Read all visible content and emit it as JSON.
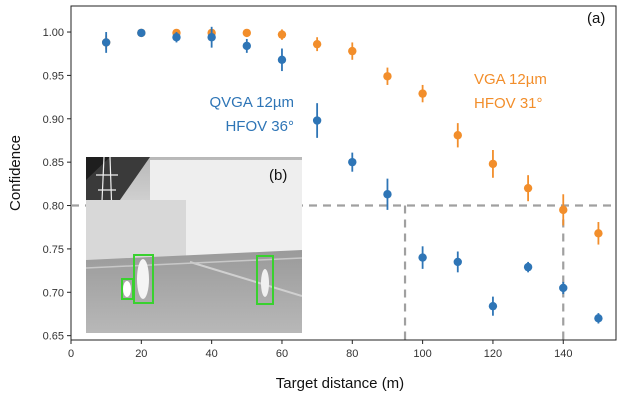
{
  "chart_data": {
    "type": "scatter",
    "xlabel": "Target distance (m)",
    "ylabel": "Confidence",
    "xlim": [
      0,
      155
    ],
    "ylim": [
      0.645,
      1.03
    ],
    "xticks": [
      0,
      20,
      40,
      60,
      80,
      100,
      120,
      140
    ],
    "xtick_labels": [
      "0",
      "20",
      "40",
      "60",
      "80",
      "100",
      "120",
      "140"
    ],
    "yticks": [
      0.65,
      0.7,
      0.75,
      0.8,
      0.85,
      0.9,
      0.95,
      1.0
    ],
    "ytick_labels": [
      "0.65",
      "0.70",
      "0.75",
      "0.80",
      "0.85",
      "0.90",
      "0.95",
      "1.00"
    ],
    "grid": false,
    "series": [
      {
        "name": "VGA 12µm HFOV 31°",
        "color": "#f28e2b",
        "x": [
          10,
          20,
          30,
          40,
          50,
          60,
          70,
          80,
          90,
          100,
          110,
          120,
          130,
          140,
          150
        ],
        "y": [
          0.988,
          0.999,
          0.999,
          0.999,
          0.999,
          0.997,
          0.986,
          0.978,
          0.949,
          0.929,
          0.881,
          0.848,
          0.82,
          0.795,
          0.768
        ],
        "err": [
          0.008,
          0.003,
          0.003,
          0.004,
          0.003,
          0.006,
          0.008,
          0.01,
          0.01,
          0.01,
          0.014,
          0.016,
          0.015,
          0.018,
          0.013
        ]
      },
      {
        "name": "QVGA 12µm HFOV 36°",
        "color": "#2e75b6",
        "x": [
          10,
          20,
          30,
          40,
          50,
          60,
          70,
          80,
          90,
          100,
          110,
          120,
          130,
          140,
          150
        ],
        "y": [
          0.988,
          0.999,
          0.994,
          0.994,
          0.984,
          0.968,
          0.898,
          0.85,
          0.813,
          0.74,
          0.735,
          0.684,
          0.729,
          0.705,
          0.67
        ],
        "err": [
          0.012,
          0.003,
          0.006,
          0.012,
          0.008,
          0.013,
          0.02,
          0.011,
          0.018,
          0.013,
          0.012,
          0.011,
          0.006,
          0.007,
          0.006
        ]
      }
    ],
    "threshold_line": 0.8,
    "annotations": {
      "qvga_line1": "QVGA 12µm",
      "qvga_line2": "HFOV 36°",
      "vga_line1": "VGA 12µm",
      "vga_line2": "HFOV 31°",
      "panel_a": "(a)",
      "panel_b": "(b)"
    },
    "inset": {
      "type": "thermal-image",
      "detection_boxes": 3
    }
  }
}
